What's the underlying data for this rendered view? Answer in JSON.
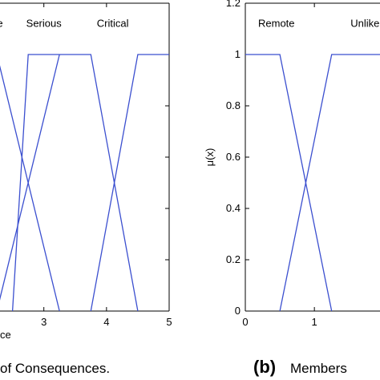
{
  "chart_data": [
    {
      "type": "line",
      "title": "",
      "xlabel": "ce",
      "ylabel": "",
      "xlim": [
        2.3,
        5
      ],
      "ylim": [
        0,
        1.2
      ],
      "xticks": [
        3,
        4,
        5
      ],
      "yticks": [],
      "caption": "of Consequences.",
      "caption_prefix": "",
      "series": [
        {
          "name": "",
          "x": [
            1.75,
            2.25,
            3.25
          ],
          "y": [
            0,
            1,
            0
          ]
        },
        {
          "name": "",
          "x": [
            2.25,
            3.25
          ],
          "y": [
            0,
            1
          ]
        },
        {
          "name": "Serious",
          "x": [
            2.5,
            2.75,
            3.25,
            3.75,
            4.5
          ],
          "y": [
            0,
            1,
            1,
            1,
            0
          ]
        },
        {
          "name": "Critical",
          "x": [
            3.75,
            4.5,
            5
          ],
          "y": [
            0,
            1,
            1
          ]
        }
      ],
      "labels": [
        {
          "text": "e",
          "x": 2.3,
          "y": 1.12
        },
        {
          "text": "Serious",
          "x": 3.0,
          "y": 1.12
        },
        {
          "text": "Critical",
          "x": 4.1,
          "y": 1.12
        }
      ]
    },
    {
      "type": "line",
      "title": "",
      "xlabel": "",
      "ylabel": "μ(x)",
      "xlim": [
        0,
        1.95
      ],
      "ylim": [
        0,
        1.2
      ],
      "xticks": [
        0,
        1
      ],
      "yticks": [
        0,
        0.2,
        0.4,
        0.6,
        0.8,
        1,
        1.2
      ],
      "caption": "Members",
      "caption_prefix": "(b)",
      "series": [
        {
          "name": "Remote",
          "x": [
            0,
            0.5,
            1.25
          ],
          "y": [
            1,
            1,
            0
          ]
        },
        {
          "name": "Unlikely",
          "x": [
            0.5,
            1.25,
            1.95
          ],
          "y": [
            0,
            1,
            1
          ]
        }
      ],
      "labels": [
        {
          "text": "Remote",
          "x": 0.45,
          "y": 1.12
        },
        {
          "text": "Unlikel",
          "x": 1.75,
          "y": 1.12
        }
      ]
    }
  ]
}
